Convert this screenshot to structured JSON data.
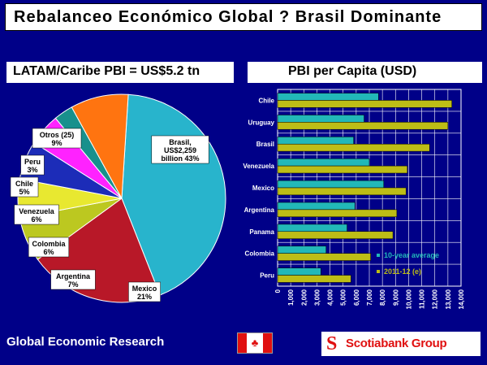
{
  "header": {
    "title": "Rebalanceo Económico Global ?  Brasil Dominante"
  },
  "pie_panel": {
    "title": "LATAM/Caribe PBI = US$5.2 tn"
  },
  "bar_panel": {
    "title": "PBI per Capita (USD)"
  },
  "footer": {
    "left_text": "Global Economic Research",
    "logo_text": "Scotiabank Group",
    "logo_icon": "scotiabank-s-icon",
    "flag_icon": "canada-flag-icon"
  },
  "colors": {
    "background": "#000088",
    "series_avg": "#22b8b8",
    "series_2011": "#bdbd16",
    "grid": "#ffffff"
  },
  "chart_data": [
    {
      "type": "pie",
      "title": "LATAM/Caribe PBI = US$5.2 tn",
      "slices": [
        {
          "label": "Brasil,\nUS$2,259\nbillion  43%",
          "value": 43,
          "color": "#28b4cc"
        },
        {
          "label": "Mexico\n21%",
          "value": 21,
          "color": "#b81828"
        },
        {
          "label": "Argentina\n7%",
          "value": 7,
          "color": "#bcc820"
        },
        {
          "label": "Colombia\n6%",
          "value": 6,
          "color": "#e8e830"
        },
        {
          "label": "Venezuela\n6%",
          "value": 6,
          "color": "#1c2cb8"
        },
        {
          "label": "Chile\n5%",
          "value": 5,
          "color": "#ff22ff"
        },
        {
          "label": "Peru\n3%",
          "value": 3,
          "color": "#18908c"
        },
        {
          "label": "Otros (25)\n9%",
          "value": 9,
          "color": "#ff7410"
        }
      ]
    },
    {
      "type": "bar",
      "orientation": "horizontal",
      "title": "PBI per Capita (USD)",
      "categories": [
        "Chile",
        "Uruguay",
        "Brasil",
        "Venezuela",
        "Mexico",
        "Argentina",
        "Panama",
        "Colombia",
        "Peru"
      ],
      "series": [
        {
          "name": "10-year average",
          "values": [
            7700,
            6600,
            5800,
            7000,
            8100,
            5900,
            5300,
            3700,
            3300
          ]
        },
        {
          "name": "2011-12 (e)",
          "values": [
            13300,
            13000,
            11600,
            9900,
            9800,
            9100,
            8800,
            7100,
            5600
          ]
        }
      ],
      "x_ticks": [
        "0",
        "1,000",
        "2,000",
        "3,000",
        "4,000",
        "5,000",
        "6,000",
        "7,000",
        "8,000",
        "9,000",
        "10,000",
        "11,000",
        "12,000",
        "13,000",
        "14,000"
      ],
      "xlim": [
        0,
        14000
      ],
      "grid": true,
      "legend": "bottom-right"
    }
  ]
}
